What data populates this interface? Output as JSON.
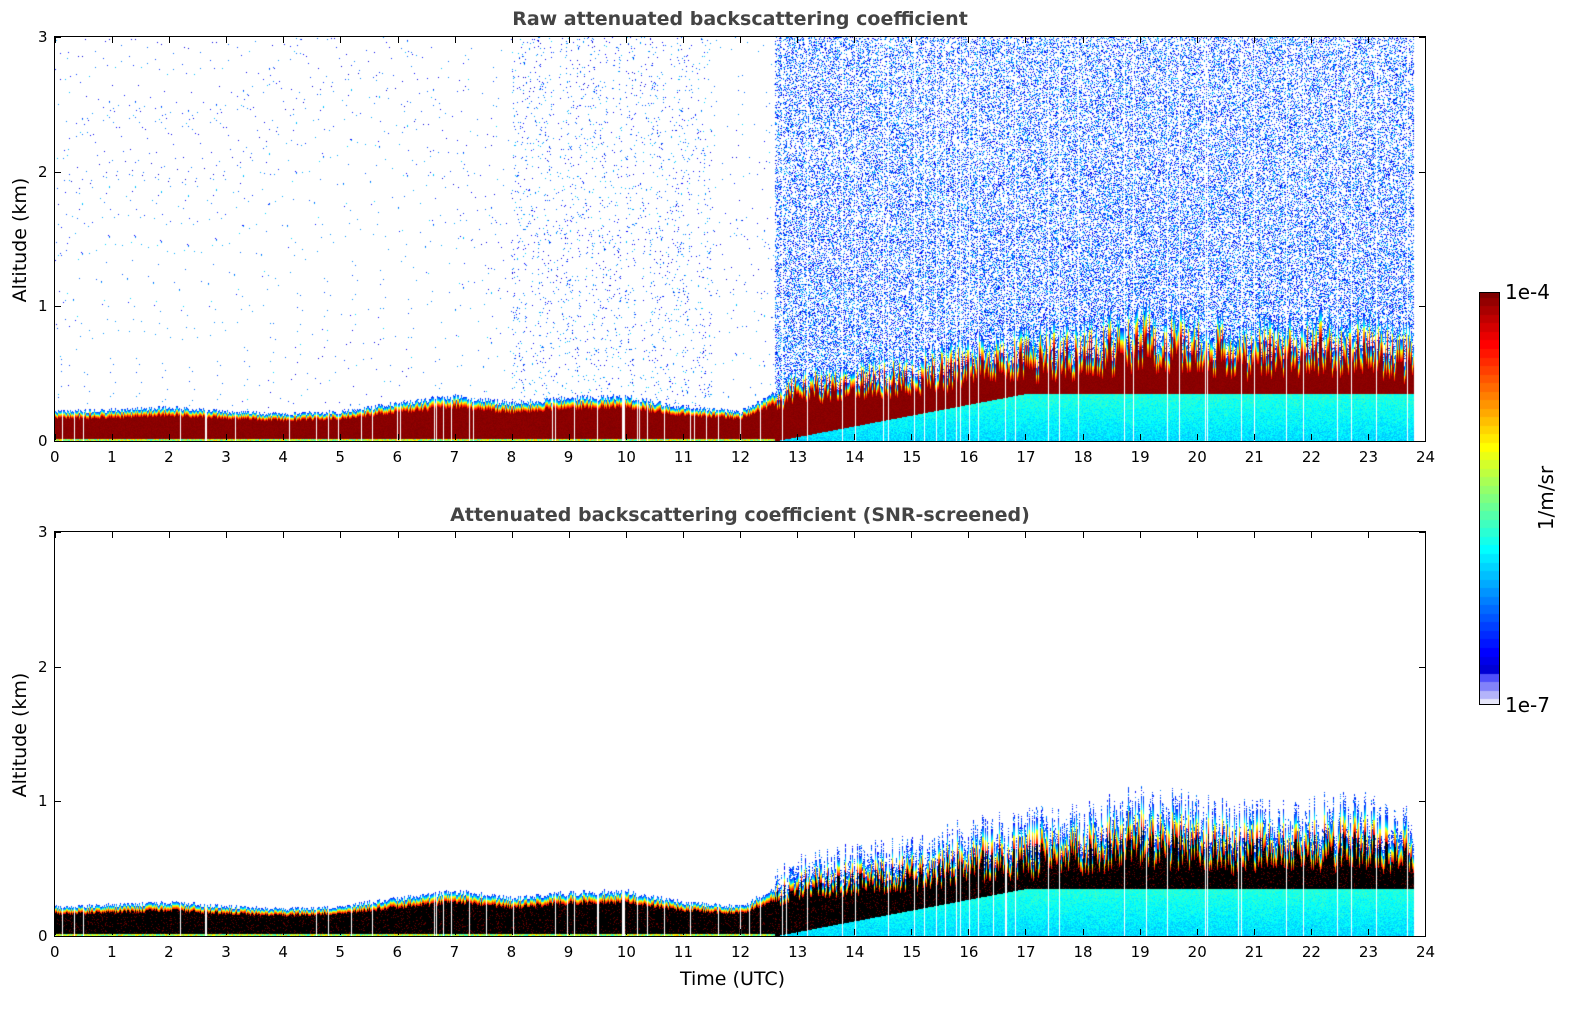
{
  "chart_data": [
    {
      "type": "heatmap",
      "title": "Raw attenuated backscattering coefficient",
      "xlabel": "",
      "ylabel": "Altitude (km)",
      "xlim": [
        0,
        24
      ],
      "ylim": [
        0,
        3
      ],
      "xticks": [
        "0",
        "1",
        "2",
        "3",
        "4",
        "5",
        "6",
        "7",
        "8",
        "9",
        "10",
        "11",
        "12",
        "13",
        "14",
        "15",
        "16",
        "17",
        "18",
        "19",
        "20",
        "21",
        "22",
        "23",
        "24"
      ],
      "yticks": [
        "0",
        "1",
        "2",
        "3"
      ],
      "layer_top_km": {
        "time": [
          0,
          1,
          2,
          3,
          4,
          5,
          6,
          7,
          8,
          9,
          10,
          11,
          12,
          12.6,
          13,
          14,
          15,
          16,
          17,
          18,
          19,
          20,
          21,
          22,
          23,
          23.8
        ],
        "height": [
          0.22,
          0.23,
          0.25,
          0.22,
          0.2,
          0.22,
          0.28,
          0.33,
          0.28,
          0.32,
          0.33,
          0.25,
          0.22,
          0.35,
          0.45,
          0.5,
          0.55,
          0.65,
          0.7,
          0.75,
          0.85,
          0.8,
          0.75,
          0.8,
          0.8,
          0.7
        ]
      },
      "data_end_time": 23.8,
      "screened": false
    },
    {
      "type": "heatmap",
      "title": "Attenuated backscattering coefficient (SNR-screened)",
      "xlabel": "Time (UTC)",
      "ylabel": "Altitude (km)",
      "xlim": [
        0,
        24
      ],
      "ylim": [
        0,
        3
      ],
      "xticks": [
        "0",
        "1",
        "2",
        "3",
        "4",
        "5",
        "6",
        "7",
        "8",
        "9",
        "10",
        "11",
        "12",
        "13",
        "14",
        "15",
        "16",
        "17",
        "18",
        "19",
        "20",
        "21",
        "22",
        "23",
        "24"
      ],
      "yticks": [
        "0",
        "1",
        "2",
        "3"
      ],
      "data_end_time": 23.8,
      "screened": true
    }
  ],
  "colorbar": {
    "label": "1/m/sr",
    "max_label": "1e-4",
    "min_label": "1e-7",
    "scale": "log",
    "colormap": "jet"
  }
}
